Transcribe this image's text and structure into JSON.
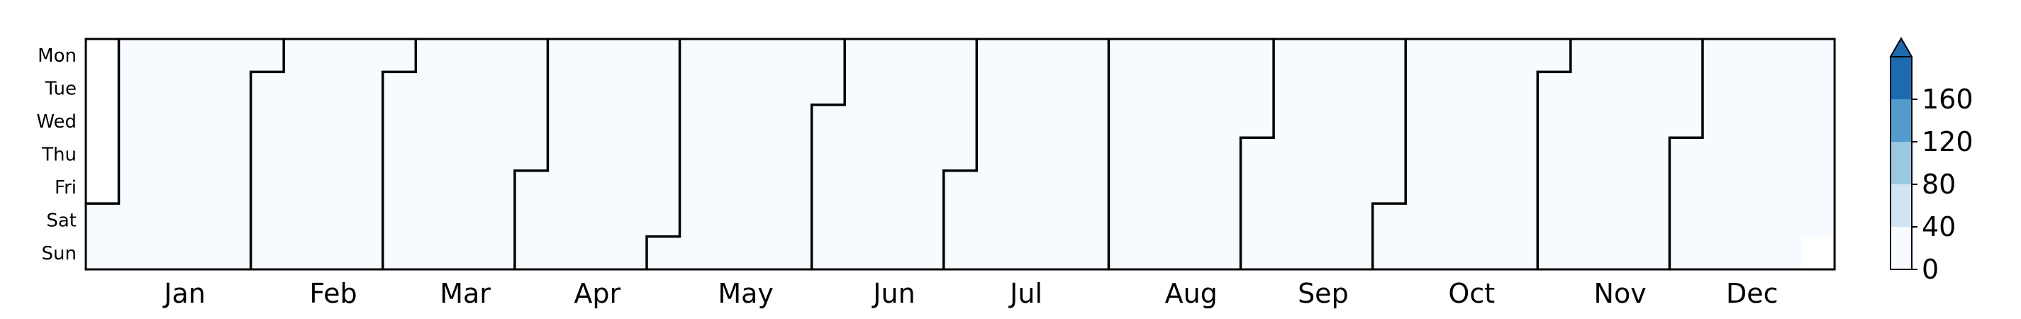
{
  "chart_data": {
    "type": "heatmap",
    "title": "",
    "day_labels": [
      "Mon",
      "Tue",
      "Wed",
      "Thu",
      "Fri",
      "Sat",
      "Sun"
    ],
    "month_labels": [
      "Jan",
      "Feb",
      "Mar",
      "Apr",
      "May",
      "Jun",
      "Jul",
      "Aug",
      "Sep",
      "Oct",
      "Nov",
      "Dec"
    ],
    "start_weekday": "Sat",
    "days_in_year": 365,
    "colorbar": {
      "ticks": [
        "0",
        "40",
        "80",
        "120",
        "160"
      ],
      "levels": [
        0,
        40,
        80,
        120,
        160
      ],
      "max": 200,
      "extend": "max",
      "colors": [
        "#f7fbff",
        "#d2e3f3",
        "#9ac8e0",
        "#519ccc",
        "#1c6ab0"
      ]
    },
    "values": [
      [
        null,
        20,
        30,
        20,
        20,
        20,
        20,
        20,
        20,
        20,
        20,
        20,
        20,
        20,
        20,
        20,
        20,
        20,
        20,
        20,
        20,
        20,
        20,
        20,
        20,
        20,
        20,
        20,
        20,
        20,
        20,
        20,
        20,
        20,
        20,
        20,
        20,
        20,
        20,
        20,
        20,
        20,
        20,
        20,
        20,
        20,
        20,
        20,
        20,
        20,
        20,
        20,
        20
      ],
      [
        null,
        20,
        20,
        20,
        20,
        20,
        20,
        20,
        20,
        20,
        20,
        20,
        20,
        20,
        20,
        20,
        20,
        20,
        20,
        20,
        20,
        20,
        20,
        20,
        20,
        20,
        20,
        20,
        20,
        20,
        20,
        20,
        20,
        20,
        20,
        20,
        20,
        20,
        20,
        20,
        20,
        20,
        20,
        20,
        20,
        20,
        20,
        20,
        20,
        20,
        20,
        20,
        20
      ],
      [
        null,
        20,
        20,
        20,
        20,
        20,
        20,
        20,
        20,
        20,
        20,
        20,
        20,
        20,
        20,
        20,
        20,
        20,
        20,
        20,
        20,
        20,
        20,
        20,
        20,
        20,
        20,
        20,
        20,
        20,
        20,
        20,
        20,
        20,
        20,
        20,
        20,
        20,
        20,
        20,
        20,
        20,
        20,
        20,
        20,
        20,
        20,
        20,
        20,
        20,
        20,
        20,
        20
      ],
      [
        null,
        20,
        20,
        20,
        20,
        20,
        20,
        20,
        20,
        20,
        20,
        20,
        20,
        20,
        20,
        20,
        20,
        20,
        20,
        20,
        20,
        20,
        20,
        20,
        20,
        20,
        20,
        20,
        20,
        20,
        20,
        20,
        20,
        20,
        20,
        20,
        20,
        20,
        20,
        20,
        20,
        20,
        20,
        20,
        20,
        20,
        20,
        20,
        20,
        20,
        20,
        20,
        20
      ],
      [
        null,
        20,
        20,
        20,
        20,
        20,
        20,
        20,
        20,
        20,
        20,
        20,
        20,
        20,
        20,
        20,
        20,
        20,
        20,
        20,
        20,
        20,
        20,
        20,
        20,
        20,
        20,
        20,
        20,
        20,
        20,
        20,
        20,
        20,
        20,
        20,
        20,
        20,
        20,
        20,
        20,
        20,
        20,
        20,
        20,
        20,
        20,
        20,
        20,
        20,
        20,
        20,
        20
      ],
      [
        20,
        20,
        20,
        20,
        20,
        20,
        20,
        20,
        20,
        20,
        20,
        20,
        20,
        20,
        20,
        20,
        20,
        20,
        20,
        20,
        20,
        20,
        20,
        20,
        20,
        20,
        20,
        20,
        20,
        20,
        20,
        20,
        20,
        20,
        20,
        20,
        20,
        20,
        20,
        20,
        20,
        20,
        20,
        20,
        20,
        20,
        20,
        20,
        20,
        20,
        20,
        20,
        20
      ],
      [
        20,
        20,
        20,
        20,
        20,
        20,
        20,
        20,
        20,
        20,
        20,
        20,
        20,
        20,
        20,
        20,
        20,
        20,
        20,
        20,
        20,
        20,
        20,
        20,
        20,
        20,
        20,
        20,
        20,
        20,
        20,
        20,
        20,
        20,
        20,
        20,
        20,
        20,
        20,
        20,
        20,
        20,
        20,
        20,
        20,
        20,
        20,
        20,
        20,
        20,
        20,
        20,
        null
      ]
    ]
  }
}
